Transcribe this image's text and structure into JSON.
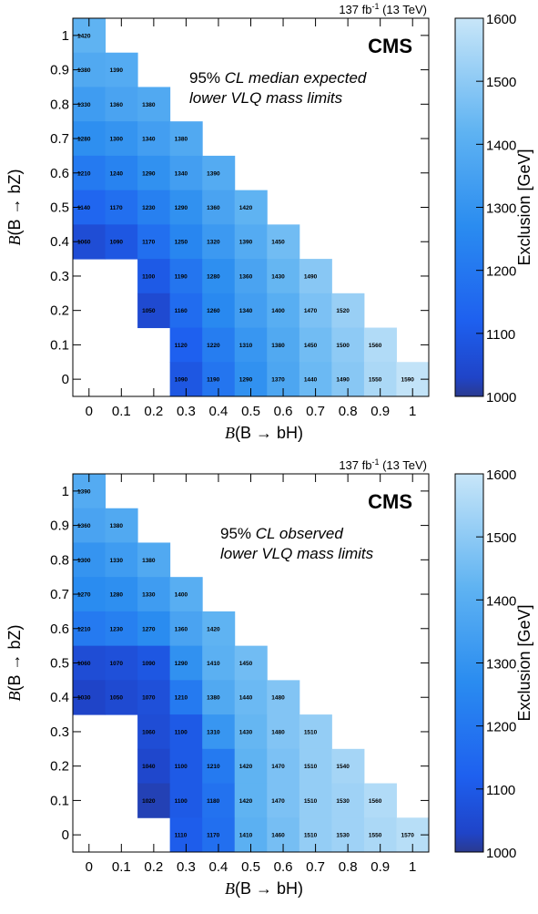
{
  "lumi_label": "137 fb",
  "lumi_sup": "-1",
  "lumi_energy": "(13 TeV)",
  "experiment": "CMS",
  "colorbar_label": "Exclusion [GeV]",
  "colors": {
    "low": "#2a3a8f",
    "mid": "#1e60ef",
    "high": "#c8e6f8"
  },
  "chart_data": [
    {
      "type": "heatmap",
      "description_prefix": "95% ",
      "description_cl": "CL",
      "description_rest": " median expected",
      "description_line2": "lower VLQ mass limits",
      "xlabel_B": "B",
      "xlabel_rest": "(B → bH)",
      "ylabel_B": "B",
      "ylabel_rest": "(B → bZ)",
      "x_ticks": [
        "0",
        "0.1",
        "0.2",
        "0.3",
        "0.4",
        "0.5",
        "0.6",
        "0.7",
        "0.8",
        "0.9",
        "1"
      ],
      "y_ticks": [
        "0",
        "0.1",
        "0.2",
        "0.3",
        "0.4",
        "0.5",
        "0.6",
        "0.7",
        "0.8",
        "0.9",
        "1"
      ],
      "z_ticks": [
        "1000",
        "1100",
        "1200",
        "1300",
        "1400",
        "1500",
        "1600"
      ],
      "zlim": [
        1000,
        1600
      ],
      "rows": [
        {
          "y": 1.0,
          "start": 0,
          "values": [
            1420
          ]
        },
        {
          "y": 0.9,
          "start": 0,
          "values": [
            1380,
            1390
          ]
        },
        {
          "y": 0.8,
          "start": 0,
          "values": [
            1330,
            1360,
            1380
          ]
        },
        {
          "y": 0.7,
          "start": 0,
          "values": [
            1280,
            1300,
            1340,
            1380
          ]
        },
        {
          "y": 0.6,
          "start": 0,
          "values": [
            1210,
            1240,
            1290,
            1340,
            1390
          ]
        },
        {
          "y": 0.5,
          "start": 0,
          "values": [
            1140,
            1170,
            1230,
            1290,
            1360,
            1420
          ]
        },
        {
          "y": 0.4,
          "start": 0,
          "values": [
            1060,
            1090,
            1170,
            1250,
            1320,
            1390,
            1450
          ]
        },
        {
          "y": 0.3,
          "start": 2,
          "values": [
            1100,
            1190,
            1280,
            1360,
            1430,
            1490
          ]
        },
        {
          "y": 0.2,
          "start": 2,
          "values": [
            1050,
            1160,
            1260,
            1340,
            1400,
            1470,
            1520
          ]
        },
        {
          "y": 0.1,
          "start": 3,
          "values": [
            1120,
            1220,
            1310,
            1380,
            1450,
            1500,
            1560
          ]
        },
        {
          "y": 0.0,
          "start": 3,
          "values": [
            1090,
            1190,
            1290,
            1370,
            1440,
            1490,
            1550,
            1590
          ]
        }
      ]
    },
    {
      "type": "heatmap",
      "description_prefix": "95% ",
      "description_cl": "CL",
      "description_rest": " observed",
      "description_line2": "lower VLQ mass limits",
      "xlabel_B": "B",
      "xlabel_rest": "(B → bH)",
      "ylabel_B": "B",
      "ylabel_rest": "(B → bZ)",
      "x_ticks": [
        "0",
        "0.1",
        "0.2",
        "0.3",
        "0.4",
        "0.5",
        "0.6",
        "0.7",
        "0.8",
        "0.9",
        "1"
      ],
      "y_ticks": [
        "0",
        "0.1",
        "0.2",
        "0.3",
        "0.4",
        "0.5",
        "0.6",
        "0.7",
        "0.8",
        "0.9",
        "1"
      ],
      "z_ticks": [
        "1000",
        "1100",
        "1200",
        "1300",
        "1400",
        "1500",
        "1600"
      ],
      "zlim": [
        1000,
        1600
      ],
      "rows": [
        {
          "y": 1.0,
          "start": 0,
          "values": [
            1390
          ]
        },
        {
          "y": 0.9,
          "start": 0,
          "values": [
            1360,
            1380
          ]
        },
        {
          "y": 0.8,
          "start": 0,
          "values": [
            1300,
            1330,
            1380
          ]
        },
        {
          "y": 0.7,
          "start": 0,
          "values": [
            1270,
            1280,
            1330,
            1400
          ]
        },
        {
          "y": 0.6,
          "start": 0,
          "values": [
            1210,
            1230,
            1270,
            1360,
            1420
          ]
        },
        {
          "y": 0.5,
          "start": 0,
          "values": [
            1060,
            1070,
            1090,
            1290,
            1410,
            1450
          ]
        },
        {
          "y": 0.4,
          "start": 0,
          "values": [
            1030,
            1050,
            1070,
            1210,
            1380,
            1440,
            1480
          ]
        },
        {
          "y": 0.3,
          "start": 2,
          "values": [
            1060,
            1100,
            1310,
            1430,
            1480,
            1510
          ]
        },
        {
          "y": 0.2,
          "start": 2,
          "values": [
            1040,
            1100,
            1210,
            1420,
            1470,
            1510,
            1540
          ]
        },
        {
          "y": 0.1,
          "start": 2,
          "values": [
            1020,
            1100,
            1180,
            1420,
            1470,
            1510,
            1530,
            1560
          ]
        },
        {
          "y": 0.0,
          "start": 3,
          "values": [
            1110,
            1170,
            1410,
            1460,
            1510,
            1530,
            1550,
            1570
          ]
        }
      ]
    }
  ]
}
